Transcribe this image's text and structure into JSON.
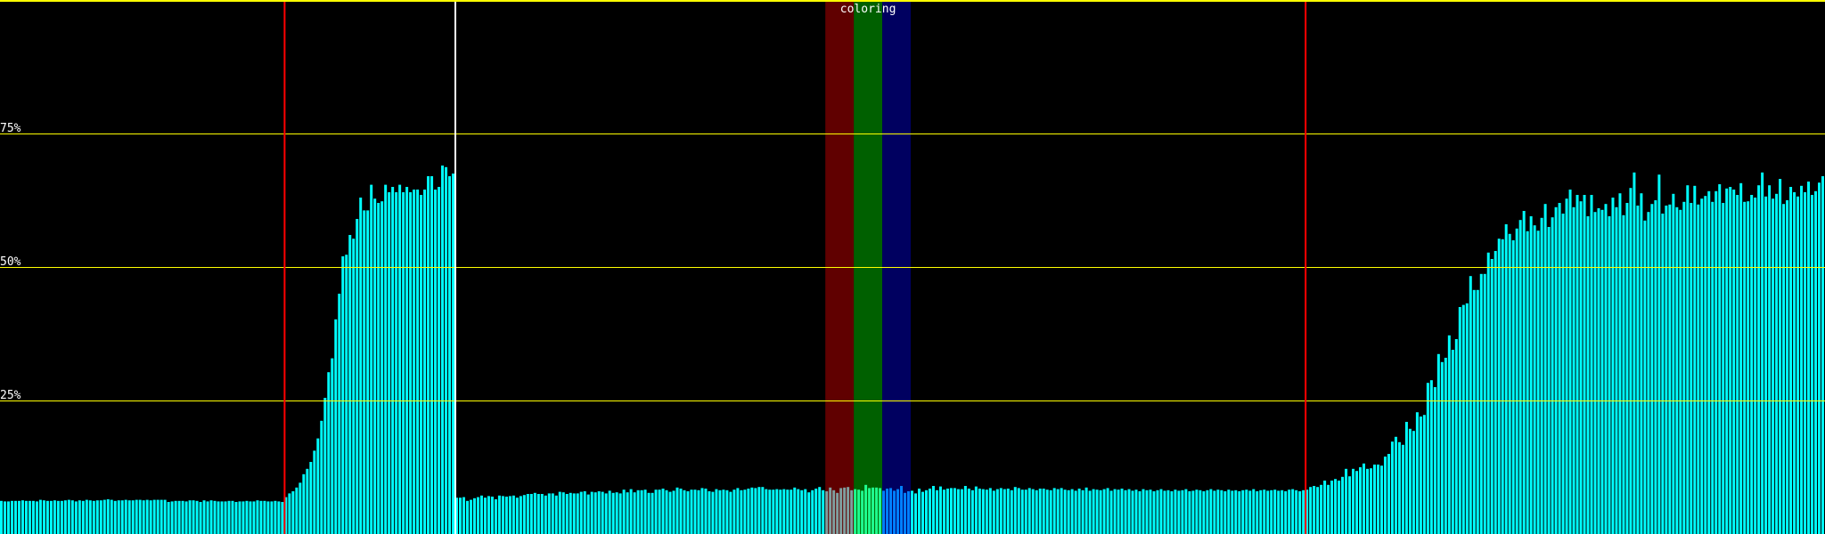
{
  "chart_data": {
    "type": "bar",
    "title": "",
    "xlabel": "",
    "ylabel": "",
    "ylim": [
      0,
      100
    ],
    "grid": true,
    "yticks": [
      {
        "value": 75,
        "label": "75%"
      },
      {
        "value": 50,
        "label": "50%"
      },
      {
        "value": 25,
        "label": "25%"
      }
    ],
    "colors": {
      "background": "#000000",
      "bar": "#00ffff",
      "gridline": "#ffff00",
      "top_border": "#ffff00",
      "marker_red": "#ff0000",
      "marker_white": "#ffffff"
    },
    "markers": [
      {
        "index": 80,
        "color": "#ff0000"
      },
      {
        "index": 128,
        "color": "#ffffff"
      },
      {
        "index": 367,
        "color": "#ff0000"
      }
    ],
    "highlight": {
      "label": "coloring",
      "bands": [
        {
          "start": 232,
          "end": 240,
          "band_color": "#600000",
          "bar_color": "#7f9f9f"
        },
        {
          "start": 240,
          "end": 248,
          "band_color": "#006000",
          "bar_color": "#20ff90"
        },
        {
          "start": 248,
          "end": 256,
          "band_color": "#000060",
          "bar_color": "#0080ff"
        }
      ]
    },
    "values": [
      6.2,
      6.1,
      6.1,
      6.2,
      6.2,
      6.2,
      6.3,
      6.2,
      6.2,
      6.2,
      6.1,
      6.4,
      6.3,
      6.2,
      6.2,
      6.3,
      6.2,
      6.2,
      6.3,
      6.4,
      6.3,
      6.1,
      6.3,
      6.2,
      6.4,
      6.3,
      6.2,
      6.3,
      6.3,
      6.4,
      6.5,
      6.4,
      6.2,
      6.3,
      6.3,
      6.4,
      6.3,
      6.3,
      6.4,
      6.4,
      6.3,
      6.4,
      6.3,
      6.4,
      6.4,
      6.4,
      6.4,
      6.0,
      6.1,
      6.2,
      6.2,
      6.2,
      6.1,
      6.3,
      6.3,
      6.2,
      6.0,
      6.3,
      6.1,
      6.3,
      6.2,
      6.1,
      6.1,
      6.1,
      6.2,
      6.2,
      6.0,
      6.1,
      6.1,
      6.2,
      6.1,
      6.1,
      6.3,
      6.2,
      6.2,
      6.1,
      6.1,
      6.2,
      6.1,
      6.0,
      6.9,
      7.6,
      8.0,
      8.7,
      9.6,
      11.2,
      12.2,
      13.5,
      15.6,
      17.9,
      21.2,
      25.5,
      30.3,
      32.9,
      40.2,
      45.0,
      52.0,
      52.3,
      56.0,
      55.3,
      59.0,
      63.0,
      60.6,
      60.6,
      65.4,
      62.8,
      62.0,
      62.3,
      65.4,
      64.0,
      65.0,
      64.0,
      65.4,
      64.0,
      65.0,
      64.0,
      64.5,
      64.5,
      63.5,
      64.5,
      67.0,
      67.0,
      64.5,
      65.0,
      69.0,
      68.7,
      67.0,
      67.5,
      6.8,
      6.8,
      6.9,
      6.2,
      6.4,
      6.7,
      6.9,
      7.2,
      6.8,
      7.1,
      7.0,
      6.5,
      7.2,
      7.1,
      7.0,
      7.1,
      7.2,
      6.8,
      7.1,
      7.3,
      7.5,
      7.5,
      7.7,
      7.5,
      7.5,
      7.2,
      7.6,
      7.6,
      7.2,
      7.9,
      7.8,
      7.5,
      7.7,
      7.6,
      7.6,
      7.9,
      8.0,
      7.4,
      7.9,
      7.8,
      8.0,
      7.9,
      7.6,
      8.1,
      7.7,
      7.8,
      7.6,
      8.3,
      7.8,
      8.4,
      7.8,
      8.2,
      8.2,
      8.3,
      7.7,
      7.7,
      8.3,
      8.3,
      8.5,
      8.2,
      7.9,
      8.1,
      8.7,
      8.5,
      8.2,
      8.0,
      8.3,
      8.3,
      8.2,
      8.6,
      8.5,
      8.0,
      7.9,
      8.4,
      8.2,
      8.3,
      8.2,
      7.9,
      8.3,
      8.6,
      8.2,
      8.3,
      8.5,
      8.7,
      8.6,
      8.8,
      8.8,
      8.4,
      8.3,
      8.3,
      8.4,
      8.3,
      8.4,
      8.3,
      8.3,
      8.7,
      8.4,
      8.2,
      8.4,
      7.8,
      8.2,
      8.5,
      8.8,
      8.2,
      8.0,
      8.7,
      8.2,
      7.7,
      8.6,
      8.7,
      8.8,
      8.2,
      8.4,
      8.3,
      8.1,
      9.2,
      8.6,
      8.7,
      8.7,
      8.6,
      8.1,
      8.5,
      8.6,
      8.1,
      8.4,
      9.0,
      7.7,
      8.0,
      8.1,
      7.6,
      8.5,
      7.9,
      8.2,
      8.5,
      9.0,
      8.2,
      8.9,
      8.3,
      8.5,
      8.6,
      8.6,
      8.4,
      8.4,
      9.0,
      8.5,
      8.2,
      8.9,
      8.5,
      8.4,
      8.3,
      8.6,
      8.1,
      8.4,
      8.6,
      8.4,
      8.5,
      8.2,
      8.8,
      8.6,
      8.3,
      8.3,
      8.6,
      8.4,
      8.2,
      8.5,
      8.5,
      8.3,
      8.2,
      8.6,
      8.4,
      8.6,
      8.3,
      8.2,
      8.4,
      8.1,
      8.5,
      8.2,
      8.7,
      8.1,
      8.4,
      8.3,
      8.2,
      8.4,
      8.6,
      8.1,
      8.4,
      8.3,
      8.5,
      8.2,
      8.4,
      8.1,
      8.3,
      8.0,
      8.4,
      8.2,
      8.3,
      8.0,
      8.2,
      8.4,
      8.1,
      8.2,
      8.0,
      8.3,
      8.1,
      8.2,
      8.4,
      8.0,
      8.1,
      8.3,
      8.2,
      8.0,
      8.2,
      8.4,
      8.1,
      8.3,
      8.2,
      8.0,
      8.3,
      8.1,
      8.2,
      8.0,
      8.2,
      8.3,
      8.1,
      8.4,
      8.0,
      8.2,
      8.3,
      8.1,
      8.2,
      8.3,
      8.1,
      8.2,
      8.0,
      8.3,
      8.4,
      8.2,
      8.0,
      8.2,
      8.3,
      8.8,
      9.0,
      8.8,
      9.2,
      10.0,
      9.2,
      10.0,
      10.3,
      10.0,
      10.7,
      12.2,
      10.8,
      12.2,
      11.8,
      12.5,
      13.2,
      12.2,
      12.3,
      13.0,
      13.0,
      12.8,
      14.5,
      15.0,
      17.3,
      18.2,
      17.2,
      16.7,
      21.0,
      19.7,
      19.3,
      22.8,
      22.0,
      22.3,
      28.3,
      28.8,
      27.5,
      33.7,
      32.2,
      33.0,
      37.2,
      34.5,
      36.5,
      42.5,
      42.9,
      43.2,
      48.3,
      45.7,
      45.7,
      48.7,
      48.7,
      52.7,
      51.5,
      53.0,
      55.3,
      55.2,
      58.0,
      56.2,
      55.0,
      57.2,
      58.8,
      60.5,
      56.7,
      59.5,
      57.8,
      56.8,
      59.2,
      61.8,
      57.5,
      59.3,
      61.2,
      62.0,
      60.0,
      62.8,
      64.5,
      61.2,
      63.5,
      62.3,
      63.5,
      59.5,
      63.5,
      60.3,
      61.0,
      60.7,
      61.8,
      59.5,
      63.0,
      61.2,
      63.8,
      59.7,
      62.0,
      64.8,
      67.7,
      61.5,
      63.8,
      58.7,
      60.3,
      61.8,
      62.5,
      67.3,
      60.0,
      61.5,
      61.7,
      63.7,
      61.2,
      60.7,
      62.2,
      65.3,
      62.0,
      65.2,
      61.7,
      62.8,
      63.3,
      64.2,
      62.2,
      64.2,
      65.5,
      62.0,
      64.7,
      65.0,
      64.5,
      63.5,
      65.7,
      62.2,
      62.3,
      63.5,
      63.0,
      65.3,
      67.7,
      63.2,
      65.3,
      62.8,
      63.7,
      66.5,
      61.8,
      62.5,
      65.0,
      64.0,
      63.2,
      65.2,
      64.0,
      66.0,
      63.5,
      64.2,
      65.8,
      67.0
    ]
  }
}
